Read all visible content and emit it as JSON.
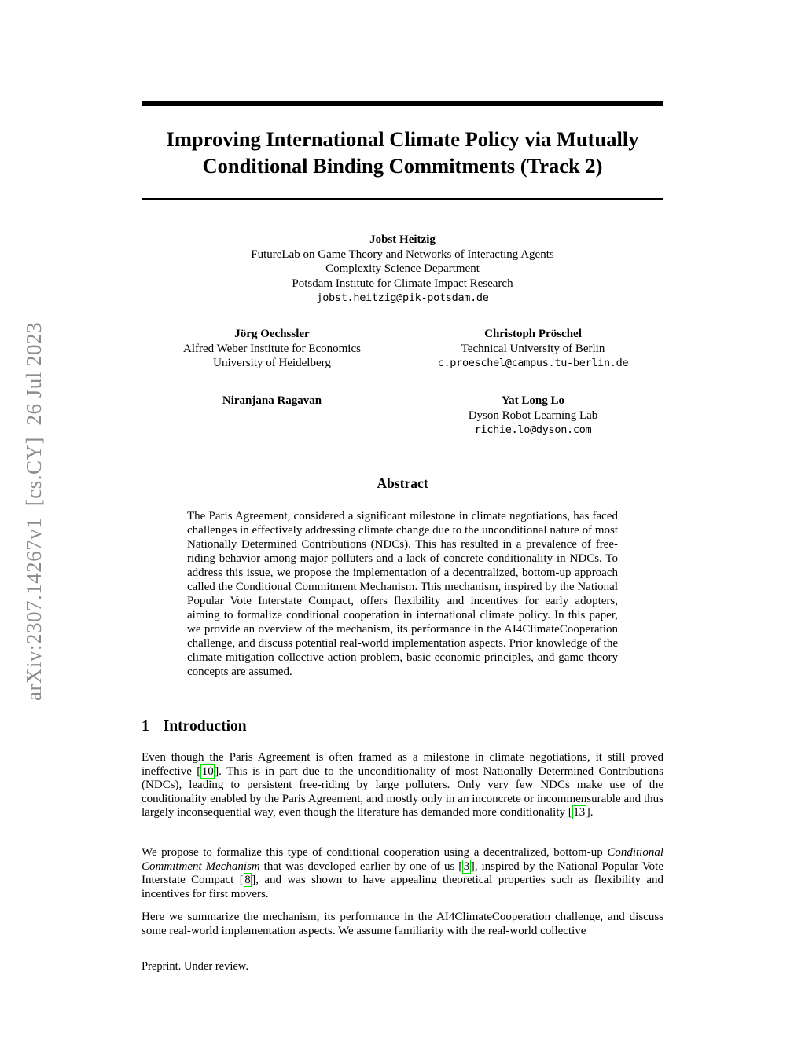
{
  "arxiv_label": "arXiv:2307.14267v1  [cs.CY]  26 Jul 2023",
  "title": "Improving International Climate Policy via Mutually Conditional Binding Commitments (Track 2)",
  "authors": {
    "row1": {
      "name": "Jobst Heitzig",
      "affil1": "FutureLab on Game Theory and Networks of Interacting Agents",
      "affil2": "Complexity Science Department",
      "affil3": "Potsdam Institute for Climate Impact Research",
      "email": "jobst.heitzig@pik-potsdam.de"
    },
    "row2_left": {
      "name": "Jörg Oechssler",
      "affil1": "Alfred Weber Institute for Economics",
      "affil2": "University of Heidelberg"
    },
    "row2_right": {
      "name": "Christoph Pröschel",
      "affil1": "Technical University of Berlin",
      "email": "c.proeschel@campus.tu-berlin.de"
    },
    "row3_left": {
      "name": "Niranjana Ragavan"
    },
    "row3_right": {
      "name": "Yat Long Lo",
      "affil1": "Dyson Robot Learning Lab",
      "email": "richie.lo@dyson.com"
    }
  },
  "abstract": {
    "heading": "Abstract",
    "text": "The Paris Agreement, considered a significant milestone in climate negotiations, has faced challenges in effectively addressing climate change due to the unconditional nature of most Nationally Determined Contributions (NDCs). This has resulted in a prevalence of free-riding behavior among major polluters and a lack of concrete conditionality in NDCs. To address this issue, we propose the implementation of a decentralized, bottom-up approach called the Conditional Commitment Mechanism. This mechanism, inspired by the National Popular Vote Interstate Compact, offers flexibility and incentives for early adopters, aiming to formalize conditional cooperation in international climate policy. In this paper, we provide an overview of the mechanism, its performance in the AI4ClimateCooperation challenge, and discuss potential real-world implementation aspects. Prior knowledge of the climate mitigation collective action problem, basic economic principles, and game theory concepts are assumed."
  },
  "intro": {
    "number": "1",
    "heading": "Introduction",
    "paragraphs": [
      [
        {
          "t": "Even though the Paris Agreement is often framed as a milestone in climate negotiations, it still proved ineffective ["
        },
        {
          "t": "10",
          "s": "cite"
        },
        {
          "t": "]. This is in part due to the unconditionality of most Nationally Determined Contributions (NDCs), leading to persistent free-riding by large polluters. Only very few NDCs make use of the conditionality enabled by the Paris Agreement, and mostly only in an inconcrete or incommensurable and thus largely inconsequential way, even though the literature has demanded more conditionality ["
        },
        {
          "t": "13",
          "s": "cite"
        },
        {
          "t": "]."
        }
      ],
      [
        {
          "t": "We propose to formalize this type of conditional cooperation using a decentralized, bottom-up "
        },
        {
          "t": "Conditional Commitment Mechanism",
          "s": "italic"
        },
        {
          "t": " that was developed earlier by one of us ["
        },
        {
          "t": "3",
          "s": "cite"
        },
        {
          "t": "], inspired by the National Popular Vote Interstate Compact ["
        },
        {
          "t": "8",
          "s": "cite"
        },
        {
          "t": "], and was shown to have appealing theoretical properties such as flexibility and incentives for first movers."
        }
      ],
      [
        {
          "t": "Here we summarize the mechanism, its performance in the AI4ClimateCooperation challenge, and discuss some real-world implementation aspects. We assume familiarity with the real-world collective"
        }
      ]
    ]
  },
  "footer": "Preprint. Under review.",
  "colors": {
    "citation_border": "#00dd00",
    "sidebar_gray": "#8c8c8c"
  }
}
